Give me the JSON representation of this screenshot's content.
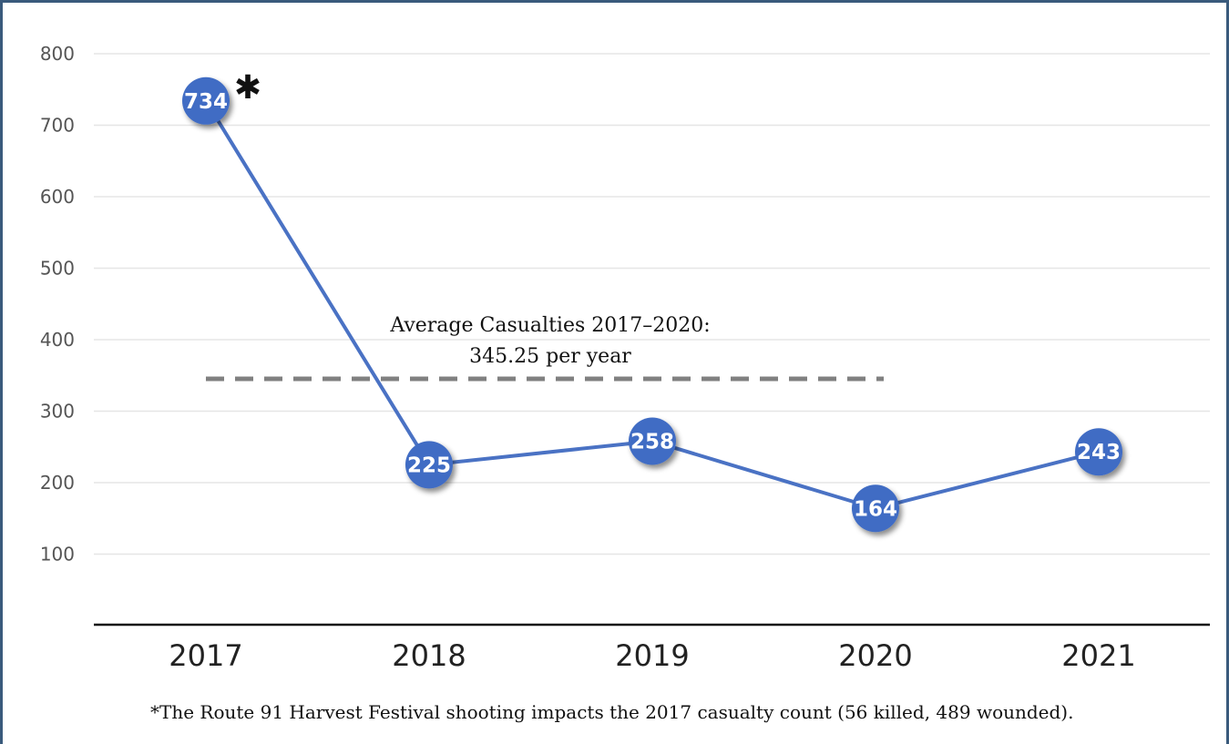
{
  "chart_data": {
    "type": "line",
    "categories": [
      "2017",
      "2018",
      "2019",
      "2020",
      "2021"
    ],
    "series": [
      {
        "values": [
          734,
          225,
          258,
          164,
          243
        ]
      }
    ],
    "data_labels": [
      "734",
      "225",
      "258",
      "164",
      "243"
    ],
    "ylim": [
      0,
      800
    ],
    "y_ticks": [
      100,
      200,
      300,
      400,
      500,
      600,
      700,
      800
    ],
    "grid": true,
    "legend": "none",
    "reference_line": {
      "value": 345.25,
      "style": "dashed",
      "label_line1": "Average Casualties 2017–2020:",
      "label_line2": "345.25 per year"
    },
    "marker_note": "✱",
    "footnote": "*The Route 91 Harvest Festival shooting impacts the 2017 casualty count (56 killed, 489 wounded).",
    "colors": {
      "line": "#4a72c4",
      "marker": "#3f6cc4",
      "reference": "#808080",
      "grid": "#e6e6e6",
      "axis": "#111111",
      "border": "#3a5a7c"
    }
  }
}
